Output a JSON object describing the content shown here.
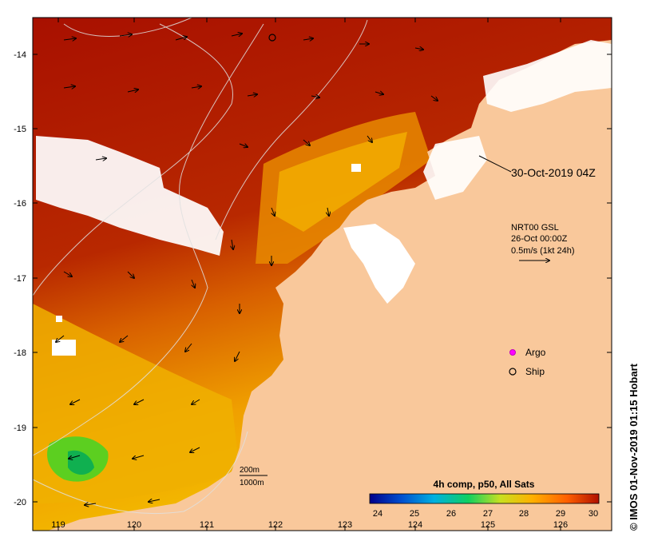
{
  "map": {
    "date_label": "30-Oct-2019 04Z",
    "credit": "© IMOS 01-Nov-2019 01:15 Hobart",
    "longitude_ticks": [
      "119",
      "120",
      "121",
      "122",
      "123",
      "124",
      "125",
      "126"
    ],
    "latitude_ticks": [
      "-14",
      "-15",
      "-16",
      "-17",
      "-18",
      "-19",
      "-20"
    ]
  },
  "current_info": {
    "line1": "NRT00 GSL",
    "line2": "26-Oct 00:00Z",
    "line3": "0.5m/s (1kt 24h)"
  },
  "legend": {
    "argo_label": "Argo",
    "ship_label": "Ship"
  },
  "contours": {
    "label_200": "200m",
    "label_1000": "1000m"
  },
  "colorbar": {
    "title": "4h comp, p50, All Sats",
    "ticks": [
      "24",
      "25",
      "26",
      "27",
      "28",
      "29",
      "30"
    ],
    "colors": [
      "#00008b",
      "#0050d0",
      "#00b0e0",
      "#10d060",
      "#c8e020",
      "#ffb000",
      "#ff6000",
      "#b01000"
    ]
  },
  "colors": {
    "land": "#f9c89b",
    "warm_sea": "#a81000",
    "cloud": "#ffffff"
  }
}
